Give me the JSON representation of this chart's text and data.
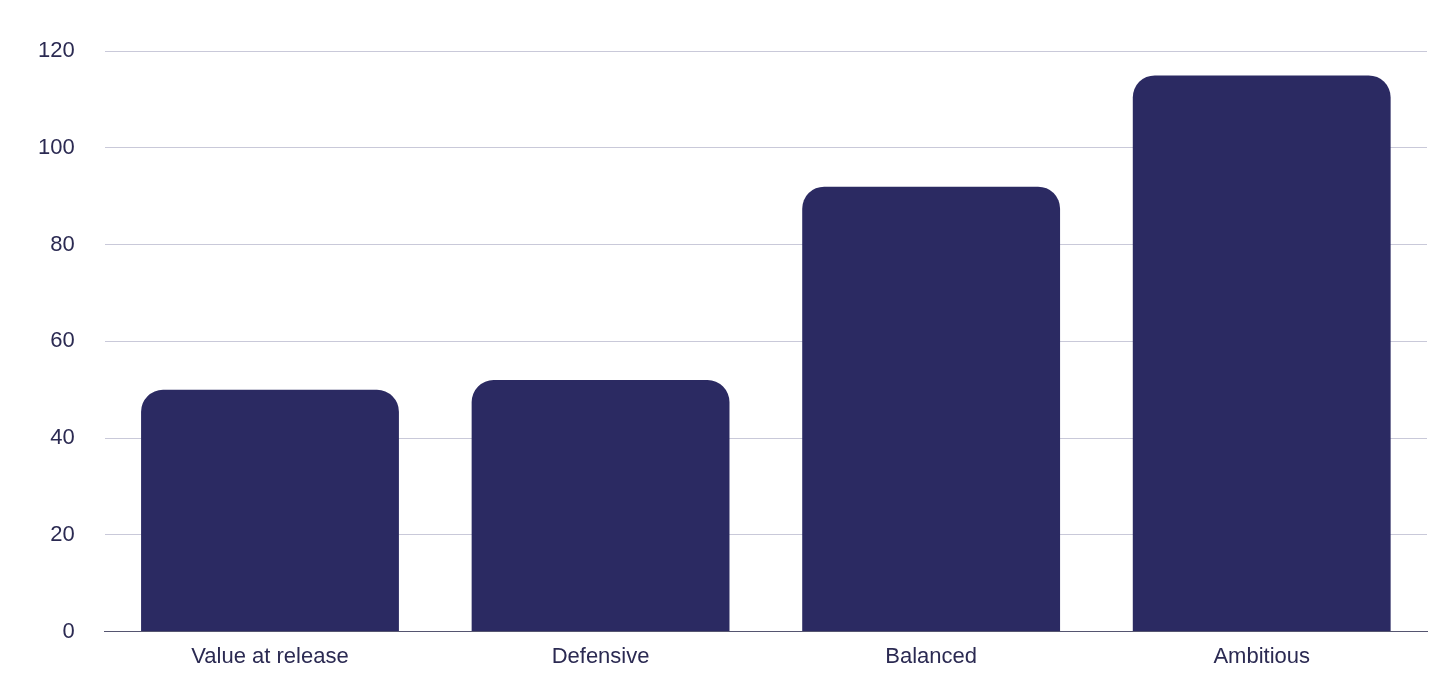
{
  "chart_data": {
    "type": "bar",
    "categories": [
      "Value at release",
      "Defensive",
      "Balanced",
      "Ambitious"
    ],
    "values": [
      50,
      52,
      92,
      115
    ],
    "color": "#2b2a62",
    "ylim": [
      0,
      120
    ],
    "yticks": [
      0,
      20,
      40,
      60,
      80,
      100,
      120
    ],
    "grid": "y",
    "legend": false
  }
}
